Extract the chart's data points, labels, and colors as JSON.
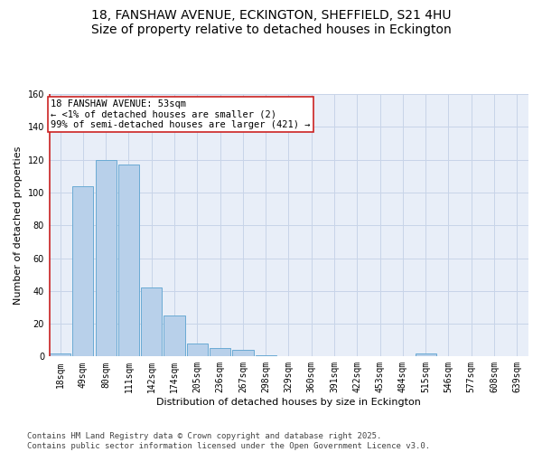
{
  "title_line1": "18, FANSHAW AVENUE, ECKINGTON, SHEFFIELD, S21 4HU",
  "title_line2": "Size of property relative to detached houses in Eckington",
  "xlabel": "Distribution of detached houses by size in Eckington",
  "ylabel": "Number of detached properties",
  "categories": [
    "18sqm",
    "49sqm",
    "80sqm",
    "111sqm",
    "142sqm",
    "174sqm",
    "205sqm",
    "236sqm",
    "267sqm",
    "298sqm",
    "329sqm",
    "360sqm",
    "391sqm",
    "422sqm",
    "453sqm",
    "484sqm",
    "515sqm",
    "546sqm",
    "577sqm",
    "608sqm",
    "639sqm"
  ],
  "values": [
    2,
    104,
    120,
    117,
    42,
    25,
    8,
    5,
    4,
    1,
    0,
    0,
    0,
    0,
    0,
    0,
    2,
    0,
    0,
    0,
    0
  ],
  "bar_color": "#b8d0ea",
  "bar_edge_color": "#6aaad4",
  "annotation_title": "18 FANSHAW AVENUE: 53sqm",
  "annotation_line1": "← <1% of detached houses are smaller (2)",
  "annotation_line2": "99% of semi-detached houses are larger (421) →",
  "marker_line_color": "#cc2222",
  "annotation_box_color": "#ffffff",
  "annotation_box_edge_color": "#cc2222",
  "ylim": [
    0,
    160
  ],
  "yticks": [
    0,
    20,
    40,
    60,
    80,
    100,
    120,
    140,
    160
  ],
  "grid_color": "#c8d4e8",
  "background_color": "#e8eef8",
  "footer_line1": "Contains HM Land Registry data © Crown copyright and database right 2025.",
  "footer_line2": "Contains public sector information licensed under the Open Government Licence v3.0.",
  "title_fontsize": 10,
  "axis_label_fontsize": 8,
  "tick_fontsize": 7,
  "annotation_fontsize": 7.5,
  "footer_fontsize": 6.5
}
